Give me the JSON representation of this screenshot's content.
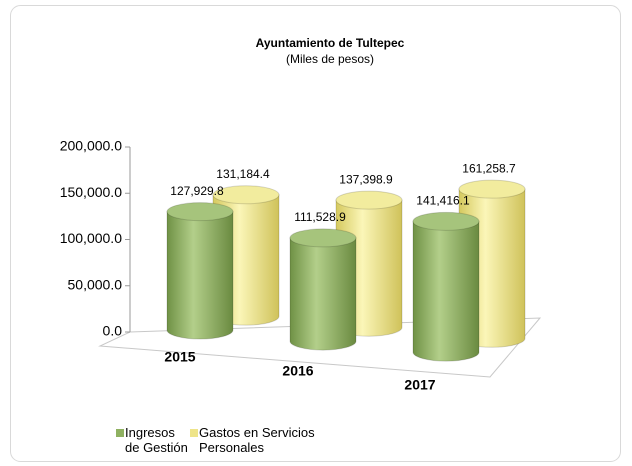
{
  "chart_data": {
    "type": "bar3d",
    "title": "Ayuntamiento de Tultepec",
    "subtitle": "(Miles de pesos)",
    "categories": [
      "2015",
      "2016",
      "2017"
    ],
    "series": [
      {
        "name": "Ingresos de Gestión",
        "color": "#8fb161",
        "values": [
          127929.8,
          111528.9,
          141416.1
        ],
        "value_labels": [
          "127,929.8",
          "111,528.9",
          "141,416.1"
        ]
      },
      {
        "name": "Gastos en Servicios Personales",
        "color": "#eee489",
        "values": [
          131184.4,
          137398.9,
          161258.7
        ],
        "value_labels": [
          "131,184.4",
          "137,398.9",
          "161,258.7"
        ]
      }
    ],
    "ylim": [
      0,
      200000
    ],
    "yticks": [
      {
        "value": 0,
        "label": "0.0"
      },
      {
        "value": 50000,
        "label": "50,000.0"
      },
      {
        "value": 100000,
        "label": "100,000.0"
      },
      {
        "value": 150000,
        "label": "150,000.0"
      },
      {
        "value": 200000,
        "label": "200,000.0"
      }
    ],
    "legend": "bottom-left"
  }
}
